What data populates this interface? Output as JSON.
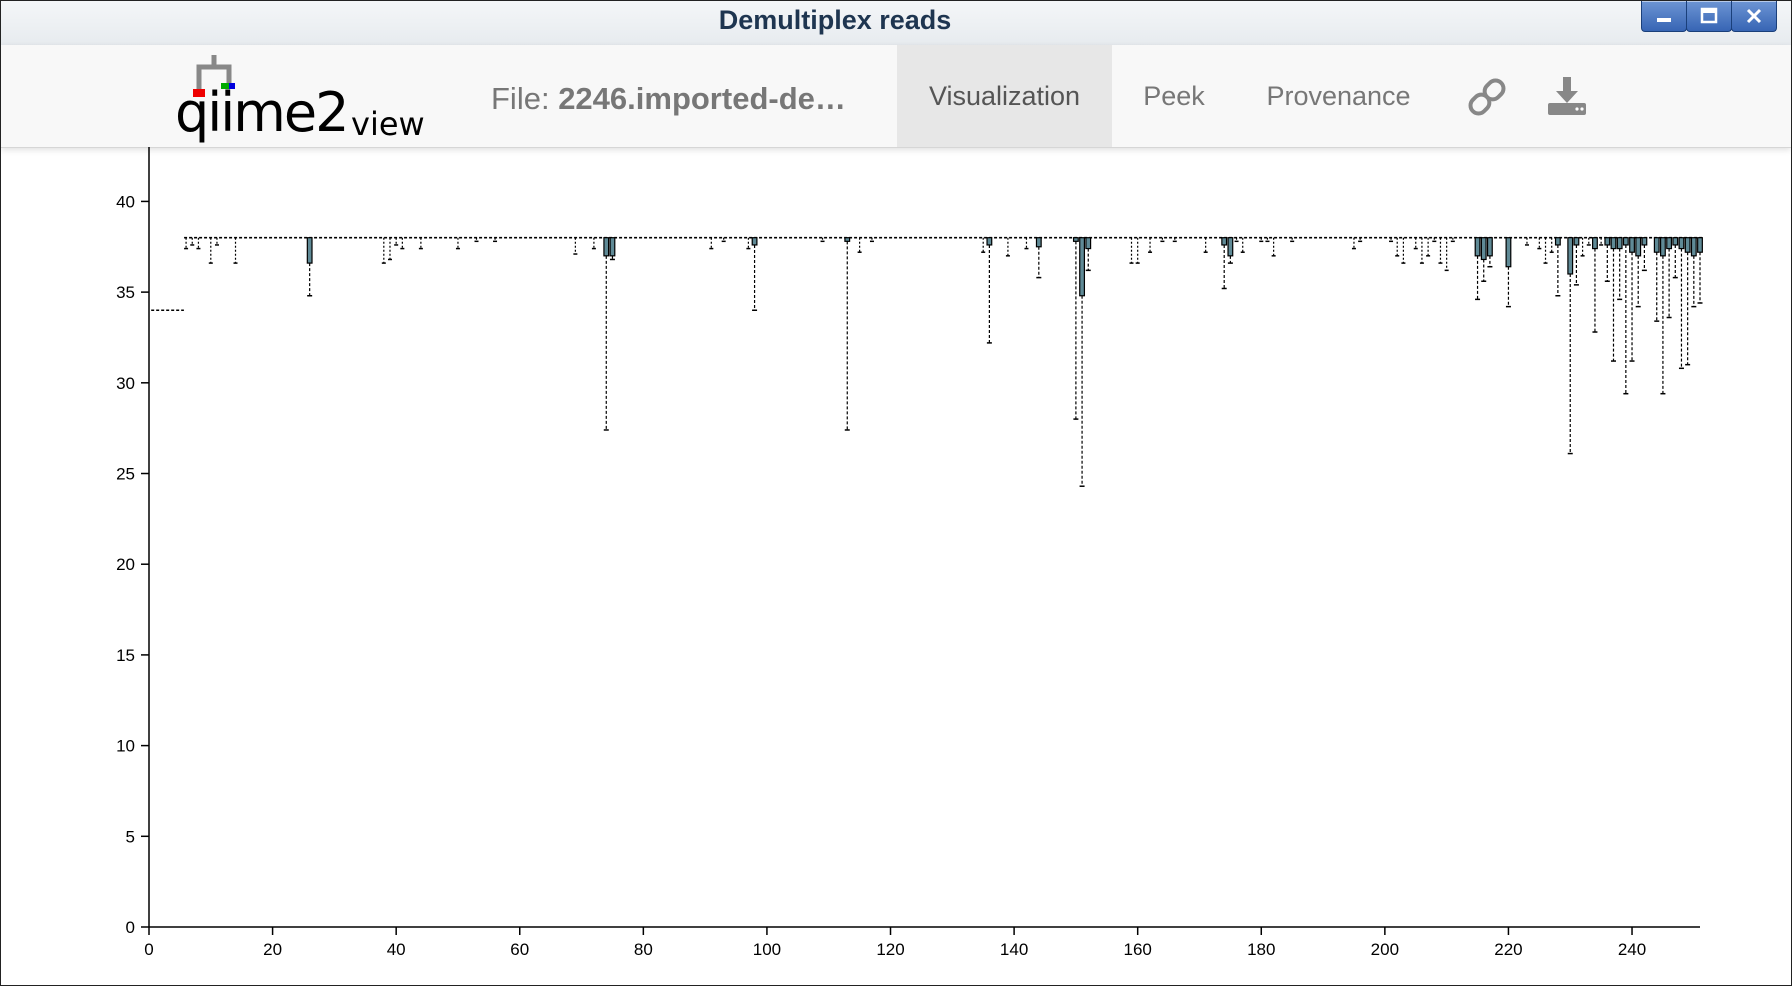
{
  "window": {
    "title": "Demultiplex reads",
    "controls": [
      "minimize-icon",
      "maximize-icon",
      "close-icon"
    ]
  },
  "navbar": {
    "logo_main": "qiime2",
    "logo_sub": "view",
    "file_prefix": "File: ",
    "file_name": "2246.imported-de…",
    "tabs": [
      {
        "label": "Visualization",
        "active": true
      },
      {
        "label": "Peek",
        "active": false
      },
      {
        "label": "Provenance",
        "active": false
      }
    ],
    "icons": [
      "link-icon",
      "download-icon"
    ]
  },
  "colors": {
    "titlebar_text": "#1e3550",
    "button_blue": "#3765b4",
    "box_fill": "#5f8a96"
  },
  "chart_data": {
    "type": "box",
    "xlim": [
      0,
      251
    ],
    "ylim": [
      0,
      43
    ],
    "x_ticks": [
      0,
      20,
      40,
      60,
      80,
      100,
      120,
      140,
      160,
      180,
      200,
      220,
      240
    ],
    "y_ticks": [
      0,
      5,
      10,
      15,
      20,
      25,
      30,
      35,
      40
    ],
    "median": 38,
    "first_positions": [
      {
        "x_start": 1,
        "x_end": 5,
        "y": 34
      }
    ],
    "outliers": [
      {
        "x": 26,
        "q1": 36.6,
        "low": 34.8
      },
      {
        "x": 74,
        "q1": 37,
        "low": 27.4
      },
      {
        "x": 75,
        "q1": 37,
        "low": 36.8
      },
      {
        "x": 98,
        "q1": 37.6,
        "low": 34
      },
      {
        "x": 113,
        "q1": 37.8,
        "low": 27.4
      },
      {
        "x": 136,
        "q1": 37.6,
        "low": 32.2
      },
      {
        "x": 144,
        "q1": 37.5,
        "low": 35.8
      },
      {
        "x": 150,
        "q1": 37.8,
        "low": 28
      },
      {
        "x": 151,
        "q1": 34.8,
        "low": 24.3
      },
      {
        "x": 152,
        "q1": 37.4,
        "low": 36.2
      },
      {
        "x": 174,
        "q1": 37.6,
        "low": 35.2
      },
      {
        "x": 175,
        "q1": 37,
        "low": 36.6
      },
      {
        "x": 215,
        "q1": 37,
        "low": 34.6
      },
      {
        "x": 216,
        "q1": 36.8,
        "low": 35.6
      },
      {
        "x": 217,
        "q1": 37,
        "low": 36.4
      },
      {
        "x": 220,
        "q1": 36.4,
        "low": 34.2
      },
      {
        "x": 228,
        "q1": 37.6,
        "low": 34.8
      },
      {
        "x": 230,
        "q1": 36,
        "low": 26.1
      },
      {
        "x": 231,
        "q1": 37.6,
        "low": 35.4
      },
      {
        "x": 234,
        "q1": 37.4,
        "low": 32.8
      },
      {
        "x": 236,
        "q1": 37.6,
        "low": 35.6
      },
      {
        "x": 237,
        "q1": 37.4,
        "low": 31.2
      },
      {
        "x": 238,
        "q1": 37.4,
        "low": 34.6
      },
      {
        "x": 239,
        "q1": 37.6,
        "low": 29.4
      },
      {
        "x": 240,
        "q1": 37.2,
        "low": 31.2
      },
      {
        "x": 241,
        "q1": 37,
        "low": 34.2
      },
      {
        "x": 242,
        "q1": 37.6,
        "low": 36.2
      },
      {
        "x": 244,
        "q1": 37.2,
        "low": 33.4
      },
      {
        "x": 245,
        "q1": 37,
        "low": 29.4
      },
      {
        "x": 246,
        "q1": 37.4,
        "low": 33.6
      },
      {
        "x": 247,
        "q1": 37.6,
        "low": 35.8
      },
      {
        "x": 248,
        "q1": 37.4,
        "low": 30.8
      },
      {
        "x": 249,
        "q1": 37.2,
        "low": 31
      },
      {
        "x": 250,
        "q1": 37,
        "low": 34.2
      },
      {
        "x": 251,
        "q1": 37.2,
        "low": 34.4
      }
    ],
    "small_whiskers": [
      {
        "x": 6,
        "low": 37.4
      },
      {
        "x": 7,
        "low": 37.6
      },
      {
        "x": 8,
        "low": 37.4
      },
      {
        "x": 10,
        "low": 36.6
      },
      {
        "x": 11,
        "low": 37.6
      },
      {
        "x": 14,
        "low": 36.6
      },
      {
        "x": 38,
        "low": 36.6
      },
      {
        "x": 39,
        "low": 36.8
      },
      {
        "x": 40,
        "low": 37.6
      },
      {
        "x": 41,
        "low": 37.4
      },
      {
        "x": 44,
        "low": 37.4
      },
      {
        "x": 50,
        "low": 37.4
      },
      {
        "x": 53,
        "low": 37.8
      },
      {
        "x": 56,
        "low": 37.8
      },
      {
        "x": 69,
        "low": 37.1
      },
      {
        "x": 72,
        "low": 37.4
      },
      {
        "x": 91,
        "low": 37.4
      },
      {
        "x": 93,
        "low": 37.8
      },
      {
        "x": 97,
        "low": 37.4
      },
      {
        "x": 109,
        "low": 37.8
      },
      {
        "x": 115,
        "low": 37.2
      },
      {
        "x": 117,
        "low": 37.8
      },
      {
        "x": 135,
        "low": 37.2
      },
      {
        "x": 139,
        "low": 37
      },
      {
        "x": 142,
        "low": 37.4
      },
      {
        "x": 159,
        "low": 36.6
      },
      {
        "x": 160,
        "low": 36.6
      },
      {
        "x": 162,
        "low": 37.2
      },
      {
        "x": 164,
        "low": 37.8
      },
      {
        "x": 166,
        "low": 37.8
      },
      {
        "x": 171,
        "low": 37.2
      },
      {
        "x": 176,
        "low": 37.8
      },
      {
        "x": 177,
        "low": 37.2
      },
      {
        "x": 180,
        "low": 37.8
      },
      {
        "x": 181,
        "low": 37.8
      },
      {
        "x": 182,
        "low": 37
      },
      {
        "x": 185,
        "low": 37.8
      },
      {
        "x": 195,
        "low": 37.4
      },
      {
        "x": 196,
        "low": 37.8
      },
      {
        "x": 201,
        "low": 37.8
      },
      {
        "x": 202,
        "low": 37
      },
      {
        "x": 203,
        "low": 36.6
      },
      {
        "x": 205,
        "low": 37.4
      },
      {
        "x": 206,
        "low": 36.6
      },
      {
        "x": 207,
        "low": 37
      },
      {
        "x": 208,
        "low": 37.8
      },
      {
        "x": 209,
        "low": 36.6
      },
      {
        "x": 210,
        "low": 36.2
      },
      {
        "x": 211,
        "low": 37.8
      },
      {
        "x": 223,
        "low": 37.6
      },
      {
        "x": 225,
        "low": 37.4
      },
      {
        "x": 226,
        "low": 36.6
      },
      {
        "x": 227,
        "low": 37.2
      },
      {
        "x": 232,
        "low": 37
      },
      {
        "x": 233,
        "low": 37.6
      },
      {
        "x": 235,
        "low": 37.6
      }
    ]
  }
}
